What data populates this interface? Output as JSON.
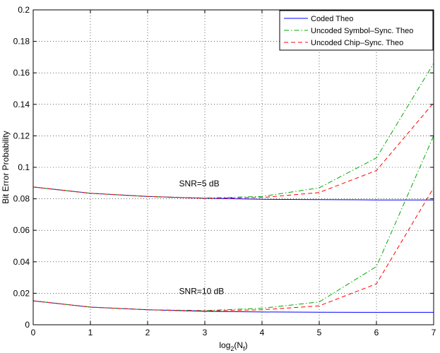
{
  "chart_data": {
    "type": "line",
    "xlabel_base": "log",
    "xlabel_sub": "2",
    "xlabel_open": "(N",
    "xlabel_sub2": "f",
    "xlabel_close": ")",
    "ylabel": "Bit Error Probability",
    "xlim": [
      0,
      7
    ],
    "ylim": [
      0,
      0.2
    ],
    "x_ticks": [
      0,
      1,
      2,
      3,
      4,
      5,
      6,
      7
    ],
    "y_ticks": [
      0,
      0.02,
      0.04,
      0.06,
      0.08,
      0.1,
      0.12,
      0.14,
      0.16,
      0.18,
      0.2
    ],
    "y_tick_labels": [
      "0",
      "0.02",
      "0.04",
      "0.06",
      "0.08",
      "0.1",
      "0.12",
      "0.14",
      "0.16",
      "0.18",
      "0.2"
    ],
    "grid": true,
    "legend_position": "top-right",
    "x": [
      0,
      1,
      2,
      3,
      4,
      5,
      6,
      7
    ],
    "series": [
      {
        "name": "Coded Theo",
        "color": "#0000ff",
        "dash": "solid",
        "group": "SNR=5 dB",
        "values": [
          0.0875,
          0.0835,
          0.0815,
          0.0803,
          0.0797,
          0.0795,
          0.0793,
          0.0793
        ]
      },
      {
        "name": "Uncoded Symbol–Sync. Theo",
        "color": "#00aa00",
        "dash": "dashdot",
        "group": "SNR=5 dB",
        "values": [
          0.0875,
          0.0835,
          0.0815,
          0.0805,
          0.0815,
          0.087,
          0.106,
          0.166
        ]
      },
      {
        "name": "Uncoded Chip–Sync. Theo",
        "color": "#ff0000",
        "dash": "dashed",
        "group": "SNR=5 dB",
        "values": [
          0.0875,
          0.0835,
          0.0815,
          0.0803,
          0.0808,
          0.084,
          0.098,
          0.141
        ]
      },
      {
        "name": "Coded Theo",
        "color": "#0000ff",
        "dash": "solid",
        "group": "SNR=10 dB",
        "values": [
          0.0152,
          0.0112,
          0.0095,
          0.0085,
          0.0081,
          0.008,
          0.0079,
          0.0079
        ]
      },
      {
        "name": "Uncoded Symbol–Sync. Theo",
        "color": "#00aa00",
        "dash": "dashdot",
        "group": "SNR=10 dB",
        "values": [
          0.0152,
          0.0112,
          0.0095,
          0.009,
          0.0105,
          0.0145,
          0.037,
          0.12
        ]
      },
      {
        "name": "Uncoded Chip–Sync. Theo",
        "color": "#ff0000",
        "dash": "dashed",
        "group": "SNR=10 dB",
        "values": [
          0.0152,
          0.0112,
          0.0095,
          0.0088,
          0.0095,
          0.012,
          0.026,
          0.087
        ]
      }
    ],
    "legend": [
      {
        "label": "Coded Theo",
        "color": "#0000ff",
        "dash": "solid"
      },
      {
        "label": "Uncoded Symbol–Sync. Theo",
        "color": "#00aa00",
        "dash": "dashdot"
      },
      {
        "label": "Uncoded Chip–Sync. Theo",
        "color": "#ff0000",
        "dash": "dashed"
      }
    ],
    "annotations": [
      {
        "text": "SNR=5 dB",
        "x": 2.55,
        "y": 0.088
      },
      {
        "text": "SNR=10 dB",
        "x": 2.55,
        "y": 0.0195
      }
    ]
  }
}
